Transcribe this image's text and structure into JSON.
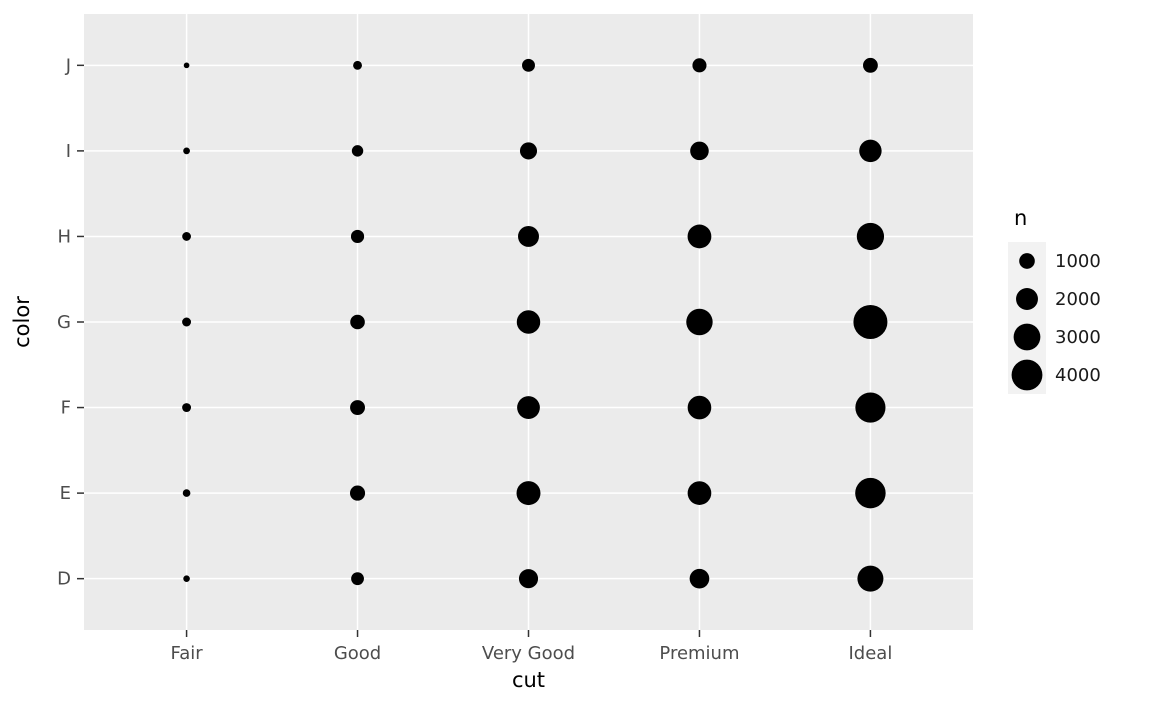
{
  "chart_data": {
    "type": "scatter",
    "variant": "count_bubble",
    "title": "",
    "xlabel": "cut",
    "ylabel": "color",
    "x_categories": [
      "Fair",
      "Good",
      "Very Good",
      "Premium",
      "Ideal"
    ],
    "y_categories": [
      "J",
      "I",
      "H",
      "G",
      "F",
      "E",
      "D"
    ],
    "series": [
      {
        "name": "J",
        "values": [
          119,
          307,
          678,
          808,
          896
        ]
      },
      {
        "name": "I",
        "values": [
          175,
          522,
          1204,
          1428,
          2093
        ]
      },
      {
        "name": "H",
        "values": [
          303,
          702,
          1824,
          2360,
          3115
        ]
      },
      {
        "name": "G",
        "values": [
          314,
          871,
          2299,
          2924,
          4884
        ]
      },
      {
        "name": "F",
        "values": [
          312,
          909,
          2164,
          2331,
          3826
        ]
      },
      {
        "name": "E",
        "values": [
          224,
          933,
          2400,
          2337,
          3903
        ]
      },
      {
        "name": "D",
        "values": [
          163,
          662,
          1513,
          1603,
          2834
        ]
      }
    ],
    "legend": {
      "title": "n",
      "entries": [
        "1000",
        "2000",
        "3000",
        "4000"
      ],
      "entry_values": [
        1000,
        2000,
        3000,
        4000
      ],
      "position": "right"
    },
    "point_color": "#000000",
    "panel_bg": "#EBEBEB",
    "grid_color": "#FFFFFF",
    "grid": true,
    "axis_text_color": "#4D4D4D",
    "tick_color": "#333333",
    "legend_key_bg": "#F2F2F2",
    "size_scale": {
      "min_n": 119,
      "max_n": 4884
    }
  }
}
